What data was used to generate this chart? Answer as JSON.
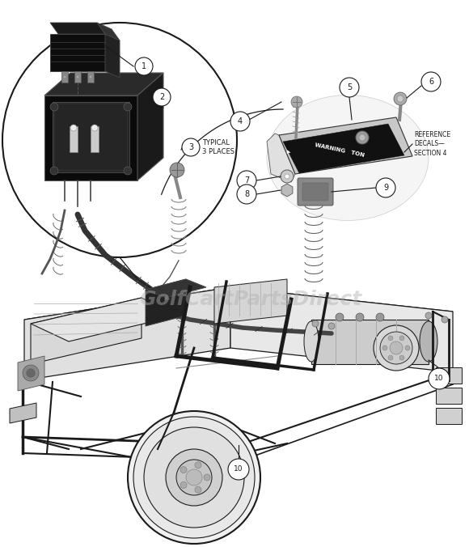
{
  "bg_color": "#ffffff",
  "line_color": "#1a1a1a",
  "watermark_text": "GolfCartPartsDirect",
  "watermark_color": "#b0b0b0",
  "watermark_alpha": 0.45,
  "typical_text": "TYPICAL\n3 PLACES",
  "ref_decals_text": "REFERENCE\nDECALS—\nSECTION 4",
  "warning_text": "WARNING   TON",
  "figsize": [
    5.8,
    6.76
  ],
  "dpi": 100
}
